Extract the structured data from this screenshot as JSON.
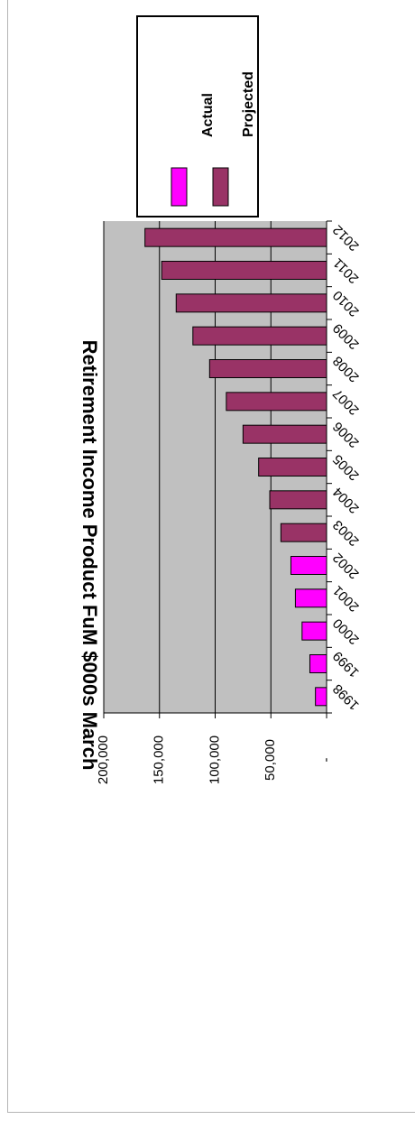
{
  "colors": {
    "actual": "#ff00ff",
    "projected": "#993366",
    "plot_background": "#c0c0c0",
    "gridline": "#000000"
  },
  "chart_data": {
    "type": "bar",
    "orientation": "rotated-90",
    "title": "Retirement Income Product FuM $000s March",
    "categories": [
      "1998",
      "1999",
      "2000",
      "2001",
      "2002",
      "2003",
      "2004",
      "2005",
      "2006",
      "2007",
      "2008",
      "2009",
      "2010",
      "2011",
      "2012"
    ],
    "series": [
      {
        "name": "Actual",
        "values": [
          10000,
          15000,
          22000,
          28000,
          32000,
          null,
          null,
          null,
          null,
          null,
          null,
          null,
          null,
          null,
          null
        ]
      },
      {
        "name": "Projected",
        "values": [
          null,
          null,
          null,
          null,
          null,
          41000,
          51000,
          61000,
          75000,
          90000,
          105000,
          120000,
          135000,
          148000,
          163000
        ]
      }
    ],
    "yticks": [
      {
        "value": 0,
        "label": "-"
      },
      {
        "value": 50000,
        "label": "50,000"
      },
      {
        "value": 100000,
        "label": "100,000"
      },
      {
        "value": 150000,
        "label": "150,000"
      },
      {
        "value": 200000,
        "label": "200,000"
      }
    ],
    "ylim": [
      0,
      200000
    ],
    "grid": true,
    "legend_position": "top-right"
  }
}
